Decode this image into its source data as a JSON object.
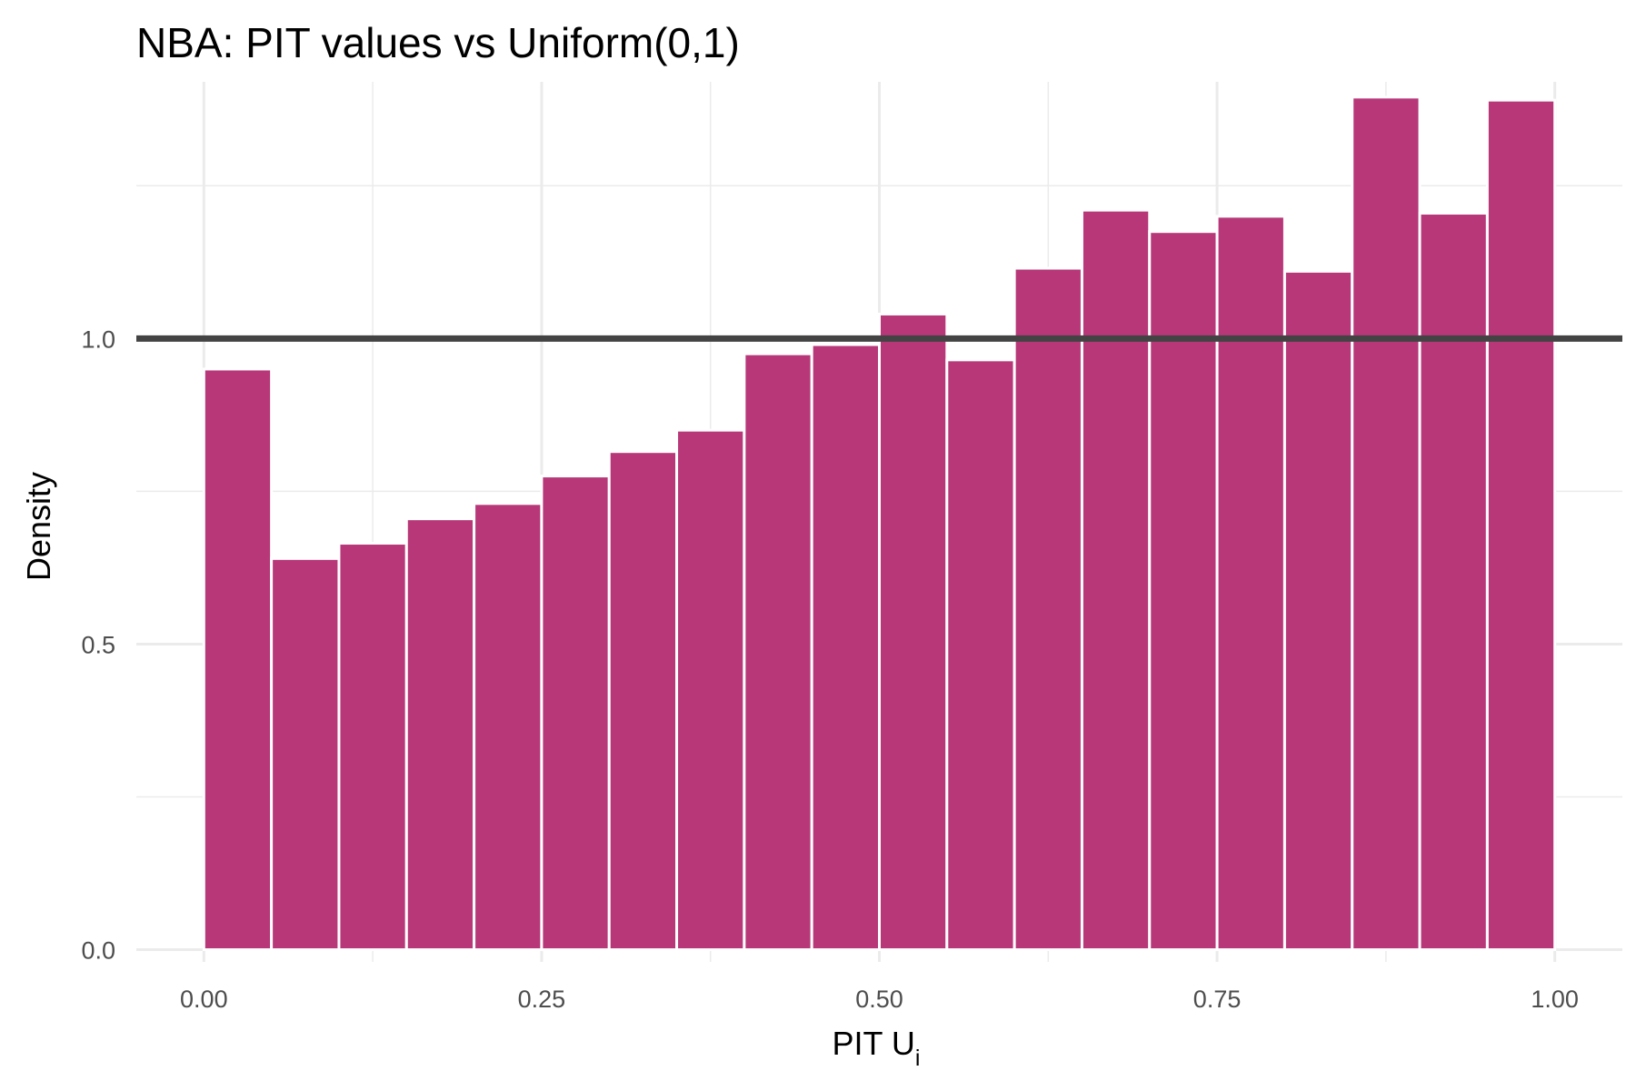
{
  "chart_data": {
    "type": "bar",
    "title": "NBA: PIT values vs Uniform(0,1)",
    "xlabel": "PIT U",
    "xlabel_subscript": "i",
    "ylabel": "Density",
    "xlim": [
      -0.05,
      1.05
    ],
    "ylim": [
      -0.02,
      1.42
    ],
    "x_ticks": [
      {
        "value": 0.0,
        "label": "0.00"
      },
      {
        "value": 0.25,
        "label": "0.25"
      },
      {
        "value": 0.5,
        "label": "0.50"
      },
      {
        "value": 0.75,
        "label": "0.75"
      },
      {
        "value": 1.0,
        "label": "1.00"
      }
    ],
    "y_ticks": [
      {
        "value": 0.0,
        "label": "0.0"
      },
      {
        "value": 0.5,
        "label": "0.5"
      },
      {
        "value": 1.0,
        "label": "1.0"
      }
    ],
    "bin_width": 0.05,
    "bins_start": [
      0.0,
      0.05,
      0.1,
      0.15,
      0.2,
      0.25,
      0.3,
      0.35,
      0.4,
      0.45,
      0.5,
      0.55,
      0.6,
      0.65,
      0.7,
      0.75,
      0.8,
      0.85,
      0.9,
      0.95
    ],
    "values": [
      0.95,
      0.64,
      0.665,
      0.705,
      0.73,
      0.775,
      0.815,
      0.85,
      0.975,
      0.99,
      1.04,
      0.965,
      1.115,
      1.21,
      1.175,
      1.2,
      1.11,
      1.395,
      1.205,
      1.39
    ],
    "reference_line": {
      "y": 1.0,
      "color": "#434343"
    },
    "bar_color": "#b73779",
    "grid": true,
    "legend": "none"
  }
}
